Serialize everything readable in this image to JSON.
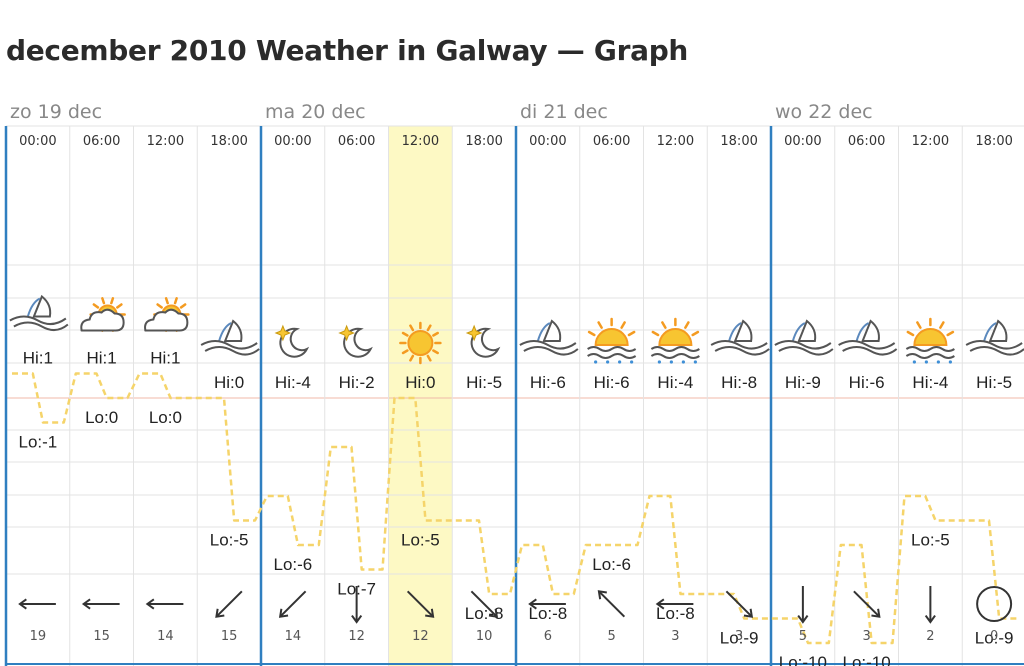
{
  "page": {
    "title": "december 2010 Weather in Galway — Graph"
  },
  "days": [
    "zo 19 dec",
    "ma 20 dec",
    "di 21 dec",
    "wo 22 dec"
  ],
  "highlight_index": 6,
  "colors": {
    "day_line": "#2f7fc0",
    "grid": "#e3e3e3",
    "highlight": "#fdf9c4",
    "temp_line": "#f5d46a",
    "zero_line": "#f0b9a8"
  },
  "chart_data": {
    "type": "line",
    "title": "december 2010 Weather in Galway — Graph",
    "xlabel": "",
    "ylabel": "",
    "ylim": [
      -12,
      3
    ],
    "grid": true,
    "periods": [
      {
        "day": "zo 19 dec",
        "time": "00:00",
        "icon": "night-cloud-icon",
        "hi_label": "Hi:1",
        "lo_label": "Lo:-1",
        "hi": 1,
        "lo": -1,
        "wind_dir": "W",
        "wind_speed": "19"
      },
      {
        "day": "zo 19 dec",
        "time": "06:00",
        "icon": "partly-sunny-icon",
        "hi_label": "Hi:1",
        "lo_label": "Lo:0",
        "hi": 1,
        "lo": 0,
        "wind_dir": "W",
        "wind_speed": "15"
      },
      {
        "day": "zo 19 dec",
        "time": "12:00",
        "icon": "partly-sunny-icon",
        "hi_label": "Hi:1",
        "lo_label": "Lo:0",
        "hi": 1,
        "lo": 0,
        "wind_dir": "W",
        "wind_speed": "14"
      },
      {
        "day": "zo 19 dec",
        "time": "18:00",
        "icon": "night-cloud-icon",
        "hi_label": "Hi:0",
        "lo_label": "Lo:-5",
        "hi": 0,
        "lo": -5,
        "wind_dir": "SW",
        "wind_speed": "15"
      },
      {
        "day": "ma 20 dec",
        "time": "00:00",
        "icon": "moon-icon",
        "hi_label": "Hi:-4",
        "lo_label": "Lo:-6",
        "hi": -4,
        "lo": -6,
        "wind_dir": "SW",
        "wind_speed": "14"
      },
      {
        "day": "ma 20 dec",
        "time": "06:00",
        "icon": "moon-icon",
        "hi_label": "Hi:-2",
        "lo_label": "Lo:-7",
        "hi": -2,
        "lo": -7,
        "wind_dir": "S",
        "wind_speed": "12"
      },
      {
        "day": "ma 20 dec",
        "time": "12:00",
        "icon": "sun-icon",
        "hi_label": "Hi:0",
        "lo_label": "Lo:-5",
        "hi": 0,
        "lo": -5,
        "wind_dir": "SE",
        "wind_speed": "12"
      },
      {
        "day": "ma 20 dec",
        "time": "18:00",
        "icon": "moon-icon",
        "hi_label": "Hi:-5",
        "lo_label": "Lo:-8",
        "hi": -5,
        "lo": -8,
        "wind_dir": "SE",
        "wind_speed": "10"
      },
      {
        "day": "di 21 dec",
        "time": "00:00",
        "icon": "night-cloud-icon",
        "hi_label": "Hi:-6",
        "lo_label": "Lo:-8",
        "hi": -6,
        "lo": -8,
        "wind_dir": "W",
        "wind_speed": "6"
      },
      {
        "day": "di 21 dec",
        "time": "06:00",
        "icon": "sunrise-icon",
        "hi_label": "Hi:-6",
        "lo_label": "Lo:-6",
        "hi": -6,
        "lo": -6,
        "wind_dir": "NW",
        "wind_speed": "5"
      },
      {
        "day": "di 21 dec",
        "time": "12:00",
        "icon": "sunrise-icon",
        "hi_label": "Hi:-4",
        "lo_label": "Lo:-8",
        "hi": -4,
        "lo": -8,
        "wind_dir": "W",
        "wind_speed": "3"
      },
      {
        "day": "di 21 dec",
        "time": "18:00",
        "icon": "night-cloud-icon",
        "hi_label": "Hi:-8",
        "lo_label": "Lo:-9",
        "hi": -8,
        "lo": -9,
        "wind_dir": "SE",
        "wind_speed": "3"
      },
      {
        "day": "wo 22 dec",
        "time": "00:00",
        "icon": "night-cloud-icon",
        "hi_label": "Hi:-9",
        "lo_label": "Lo:-10",
        "hi": -9,
        "lo": -10,
        "wind_dir": "S",
        "wind_speed": "5"
      },
      {
        "day": "wo 22 dec",
        "time": "06:00",
        "icon": "night-cloud-icon",
        "hi_label": "Hi:-6",
        "lo_label": "Lo:-10",
        "hi": -6,
        "lo": -10,
        "wind_dir": "SE",
        "wind_speed": "3"
      },
      {
        "day": "wo 22 dec",
        "time": "12:00",
        "icon": "sunrise-icon",
        "hi_label": "Hi:-4",
        "lo_label": "Lo:-5",
        "hi": -4,
        "lo": -5,
        "wind_dir": "S",
        "wind_speed": "2"
      },
      {
        "day": "wo 22 dec",
        "time": "18:00",
        "icon": "night-cloud-icon",
        "hi_label": "Hi:-5",
        "lo_label": "Lo:-9",
        "hi": -5,
        "lo": -9,
        "wind_dir": "calm",
        "wind_speed": "0"
      }
    ]
  }
}
